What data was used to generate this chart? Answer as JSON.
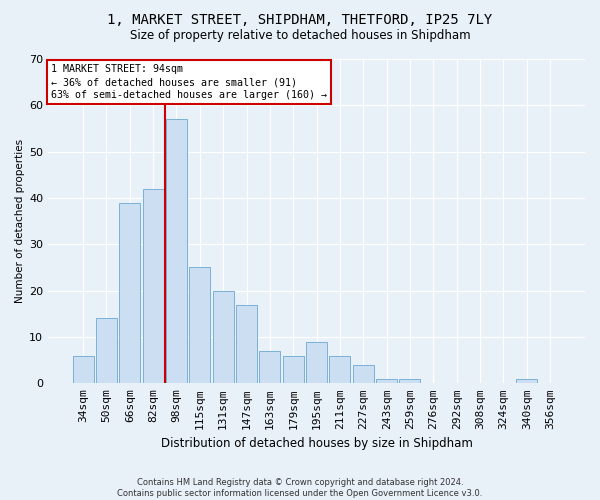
{
  "title": "1, MARKET STREET, SHIPDHAM, THETFORD, IP25 7LY",
  "subtitle": "Size of property relative to detached houses in Shipdham",
  "xlabel": "Distribution of detached houses by size in Shipdham",
  "ylabel": "Number of detached properties",
  "bar_color": "#ccdff2",
  "bar_edge_color": "#7ab0d8",
  "background_color": "#e8f0f8",
  "categories": [
    "34sqm",
    "50sqm",
    "66sqm",
    "82sqm",
    "98sqm",
    "115sqm",
    "131sqm",
    "147sqm",
    "163sqm",
    "179sqm",
    "195sqm",
    "211sqm",
    "227sqm",
    "243sqm",
    "259sqm",
    "276sqm",
    "292sqm",
    "308sqm",
    "324sqm",
    "340sqm",
    "356sqm"
  ],
  "values": [
    6,
    14,
    39,
    42,
    57,
    25,
    20,
    17,
    7,
    6,
    9,
    6,
    4,
    1,
    1,
    0,
    0,
    0,
    0,
    1,
    0
  ],
  "ylim": [
    0,
    70
  ],
  "yticks": [
    0,
    10,
    20,
    30,
    40,
    50,
    60,
    70
  ],
  "annotation_text_line1": "1 MARKET STREET: 94sqm",
  "annotation_text_line2": "← 36% of detached houses are smaller (91)",
  "annotation_text_line3": "63% of semi-detached houses are larger (160) →",
  "footer_line1": "Contains HM Land Registry data © Crown copyright and database right 2024.",
  "footer_line2": "Contains public sector information licensed under the Open Government Licence v3.0.",
  "grid_color": "#ffffff",
  "annotation_box_edge_color": "#cc0000",
  "annotation_line_color": "#cc0000",
  "red_line_x": 3.5
}
